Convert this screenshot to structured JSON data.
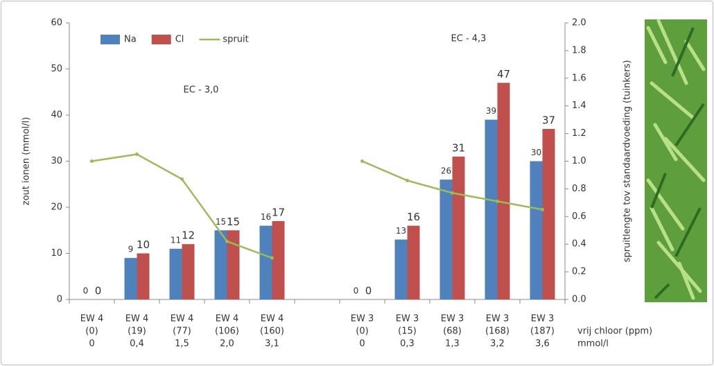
{
  "chart_data": {
    "type": "bar",
    "categories": [
      [
        "EW 4",
        "(0)",
        "0"
      ],
      [
        "EW 4",
        "(19)",
        "0,4"
      ],
      [
        "EW 4",
        "(77)",
        "1,5"
      ],
      [
        "EW 4",
        "(106)",
        "2,0"
      ],
      [
        "EW 4",
        "(160)",
        "3,1"
      ],
      null,
      [
        "EW 3",
        "(0)",
        "0"
      ],
      [
        "EW 3",
        "(15)",
        "0,3"
      ],
      [
        "EW 3",
        "(68)",
        "1,3"
      ],
      [
        "EW 3",
        "(168)",
        "3,2"
      ],
      [
        "EW 3",
        "(187)",
        "3,6"
      ]
    ],
    "x_label": [
      "vrij chloor (ppm)",
      "mmol/l"
    ],
    "y_label": "zout ionen (mmol/l)",
    "y2_label": "spruitlengte tov standaardvoeding (tuinkers)",
    "annotations": [
      "EC - 3,0",
      "EC - 4,3"
    ],
    "series": [
      {
        "name": "Na",
        "type": "bar",
        "color": "#4f81bd",
        "label_color": "#5b9bd5",
        "values": [
          0,
          9,
          11,
          15,
          16,
          null,
          0,
          13,
          26,
          39,
          30
        ]
      },
      {
        "name": "Cl",
        "type": "bar",
        "color": "#c0504d",
        "label_color": "#d9403a",
        "values": [
          0,
          10,
          12,
          15,
          17,
          null,
          0,
          16,
          31,
          47,
          37
        ]
      },
      {
        "name": "spruit",
        "type": "line",
        "axis": "y2",
        "color": "#9bbb59",
        "values": [
          1.0,
          1.05,
          0.87,
          0.42,
          0.3,
          null,
          1.0,
          0.86,
          0.77,
          0.71,
          0.65
        ]
      }
    ],
    "ylim": [
      0,
      60
    ],
    "yticks": [
      0,
      10,
      20,
      30,
      40,
      50,
      60
    ],
    "y2lim": [
      0,
      2.0
    ],
    "y2ticks": [
      {
        "value": 0,
        "label": "0.0"
      },
      {
        "value": 0.2,
        "label": "0.2"
      },
      {
        "value": 0.4,
        "label": "0.4"
      },
      {
        "value": 0.6,
        "label": "0.6"
      },
      {
        "value": 0.8,
        "label": "0.8"
      },
      {
        "value": 1.0,
        "label": "1.0"
      },
      {
        "value": 1.2,
        "label": "1.2"
      },
      {
        "value": 1.4,
        "label": "1.4"
      },
      {
        "value": 1.6,
        "label": "1.6"
      },
      {
        "value": 1.8,
        "label": "1.8"
      },
      {
        "value": 2.0,
        "label": "2.0"
      }
    ],
    "grid": false,
    "legend": "upper left"
  }
}
